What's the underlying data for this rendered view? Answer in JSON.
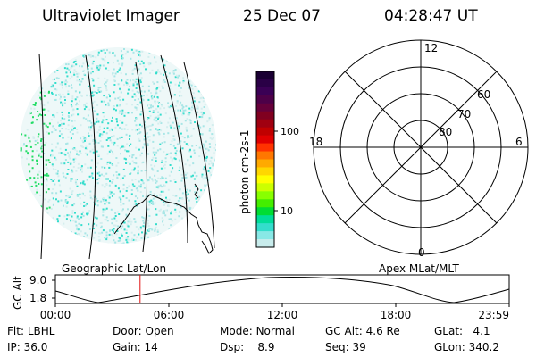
{
  "header": {
    "instrument": "Ultraviolet Imager",
    "date": "25 Dec 07",
    "time": "04:28:47 UT"
  },
  "colorbar": {
    "label": "photon cm-2s-1",
    "ticks": [
      "100",
      "10"
    ],
    "colors": [
      "#1a0033",
      "#2a0046",
      "#3a0055",
      "#4d0048",
      "#66003a",
      "#800020",
      "#a00010",
      "#c00000",
      "#e00000",
      "#ff3300",
      "#ff7700",
      "#ffaa00",
      "#ffd700",
      "#ffff00",
      "#ccff00",
      "#88ff00",
      "#44ee00",
      "#00dd33",
      "#00dd99",
      "#33ddcc",
      "#88e8e6",
      "#c8ecec"
    ]
  },
  "polar": {
    "lat_labels": [
      "60",
      "70",
      "80"
    ],
    "mlt_labels": [
      "12",
      "18",
      "6",
      "0"
    ]
  },
  "timeline": {
    "ylabel": "GC Alt",
    "y_ticks": [
      "9.0",
      "1.8"
    ],
    "left_caption": "Geographic Lat/Lon",
    "right_caption": "Apex MLat/MLT",
    "x_ticks": [
      "00:00",
      "06:00",
      "12:00",
      "18:00",
      "23:59"
    ],
    "marker_time_hours": 4.48
  },
  "status": {
    "row1": [
      {
        "label": "Flt:",
        "value": "LBHL"
      },
      {
        "label": "Door:",
        "value": "Open"
      },
      {
        "label": "Mode:",
        "value": "Normal"
      },
      {
        "label": "GC Alt:",
        "value": "4.6 Re"
      },
      {
        "label": "GLat:",
        "value": "4.1"
      }
    ],
    "row2": [
      {
        "label": "IP:",
        "value": "36.0"
      },
      {
        "label": "Gain:",
        "value": "14"
      },
      {
        "label": "Dsp:",
        "value": "8.9"
      },
      {
        "label": "Seq:",
        "value": "39"
      },
      {
        "label": "GLon:",
        "value": "340.2"
      }
    ]
  }
}
